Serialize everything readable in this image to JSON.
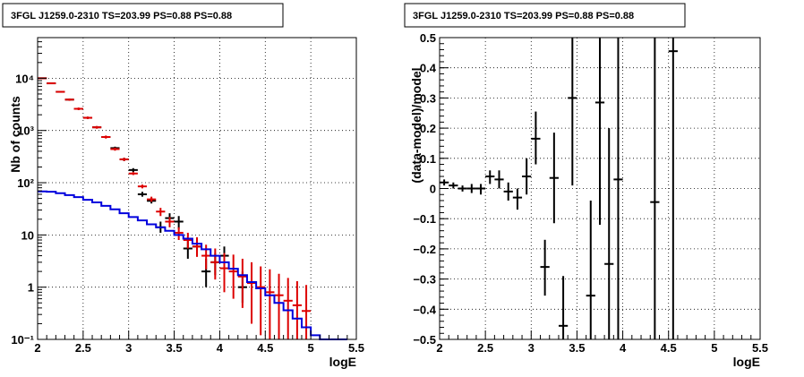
{
  "chart_data": [
    {
      "type": "scatter",
      "title": "3FGL J1259.0-2310 TS=203.99 PS=0.88 PS=0.88",
      "xlabel": "logE",
      "ylabel": "Nb of counts",
      "xlim": [
        2,
        5.5
      ],
      "ylim": [
        0.1,
        60000
      ],
      "yscale": "log",
      "grid": true,
      "x_ticks": [
        "2",
        "2.5",
        "3",
        "3.5",
        "4",
        "4.5",
        "5",
        "5.5"
      ],
      "y_ticks": [
        {
          "value": 0.1,
          "label": "10⁻¹"
        },
        {
          "value": 1,
          "label": "1"
        },
        {
          "value": 10,
          "label": "10"
        },
        {
          "value": 100,
          "label": "10²"
        },
        {
          "value": 1000,
          "label": "10³"
        },
        {
          "value": 10000,
          "label": "10⁴"
        }
      ],
      "series": [
        {
          "color": "#000000",
          "style": "errorbar",
          "points": [
            {
              "x": 2.05,
              "y": 10000,
              "ylo": 10000,
              "yhi": 10000
            },
            {
              "x": 2.15,
              "y": 8000,
              "ylo": 8000,
              "yhi": 8000
            },
            {
              "x": 2.25,
              "y": 5500,
              "ylo": 5500,
              "yhi": 5500
            },
            {
              "x": 2.35,
              "y": 3900,
              "ylo": 3900,
              "yhi": 3900
            },
            {
              "x": 2.45,
              "y": 2600,
              "ylo": 2600,
              "yhi": 2600
            },
            {
              "x": 2.55,
              "y": 1750,
              "ylo": 1750,
              "yhi": 1750
            },
            {
              "x": 2.65,
              "y": 1150,
              "ylo": 1150,
              "yhi": 1150
            },
            {
              "x": 2.75,
              "y": 750,
              "ylo": 750,
              "yhi": 750
            },
            {
              "x": 2.85,
              "y": 460,
              "ylo": 430,
              "yhi": 490
            },
            {
              "x": 2.95,
              "y": 280,
              "ylo": 260,
              "yhi": 300
            },
            {
              "x": 3.05,
              "y": 175,
              "ylo": 160,
              "yhi": 190
            },
            {
              "x": 3.15,
              "y": 60,
              "ylo": 54,
              "yhi": 67
            },
            {
              "x": 3.25,
              "y": 45,
              "ylo": 40,
              "yhi": 51
            },
            {
              "x": 3.35,
              "y": 14,
              "ylo": 11,
              "yhi": 18
            },
            {
              "x": 3.45,
              "y": 21,
              "ylo": 17,
              "yhi": 26
            },
            {
              "x": 3.55,
              "y": 18,
              "ylo": 13,
              "yhi": 23
            },
            {
              "x": 3.65,
              "y": 5.5,
              "ylo": 3.5,
              "yhi": 8
            },
            {
              "x": 3.75,
              "y": 6,
              "ylo": 4,
              "yhi": 9
            },
            {
              "x": 3.85,
              "y": 2,
              "ylo": 1,
              "yhi": 3.5
            },
            {
              "x": 3.95,
              "y": 3,
              "ylo": 1.7,
              "yhi": 4.5
            },
            {
              "x": 4.05,
              "y": 4,
              "ylo": 2.5,
              "yhi": 6
            },
            {
              "x": 4.25,
              "y": 1,
              "ylo": 0.5,
              "yhi": 2
            }
          ]
        },
        {
          "color": "#dd0000",
          "style": "errorbar",
          "points": [
            {
              "x": 2.05,
              "y": 10000,
              "ylo": 9800,
              "yhi": 10200
            },
            {
              "x": 2.15,
              "y": 8000,
              "ylo": 7800,
              "yhi": 8200
            },
            {
              "x": 2.25,
              "y": 5500,
              "ylo": 5300,
              "yhi": 5700
            },
            {
              "x": 2.35,
              "y": 3900,
              "ylo": 3700,
              "yhi": 4100
            },
            {
              "x": 2.45,
              "y": 2600,
              "ylo": 2450,
              "yhi": 2750
            },
            {
              "x": 2.55,
              "y": 1750,
              "ylo": 1650,
              "yhi": 1850
            },
            {
              "x": 2.65,
              "y": 1150,
              "ylo": 1080,
              "yhi": 1220
            },
            {
              "x": 2.75,
              "y": 750,
              "ylo": 700,
              "yhi": 800
            },
            {
              "x": 2.85,
              "y": 440,
              "ylo": 410,
              "yhi": 470
            },
            {
              "x": 2.95,
              "y": 280,
              "ylo": 260,
              "yhi": 300
            },
            {
              "x": 3.05,
              "y": 150,
              "ylo": 140,
              "yhi": 160
            },
            {
              "x": 3.15,
              "y": 85,
              "ylo": 78,
              "yhi": 92
            },
            {
              "x": 3.25,
              "y": 48,
              "ylo": 43,
              "yhi": 54
            },
            {
              "x": 3.35,
              "y": 28,
              "ylo": 23,
              "yhi": 33
            },
            {
              "x": 3.45,
              "y": 18,
              "ylo": 14,
              "yhi": 22
            },
            {
              "x": 3.55,
              "y": 11,
              "ylo": 8,
              "yhi": 14
            },
            {
              "x": 3.65,
              "y": 8,
              "ylo": 5.5,
              "yhi": 11
            },
            {
              "x": 3.75,
              "y": 6,
              "ylo": 3.8,
              "yhi": 9
            },
            {
              "x": 3.85,
              "y": 4,
              "ylo": 2.2,
              "yhi": 6.5
            },
            {
              "x": 3.95,
              "y": 3,
              "ylo": 1.4,
              "yhi": 5.5
            },
            {
              "x": 4.05,
              "y": 2.3,
              "ylo": 0.8,
              "yhi": 4.5
            },
            {
              "x": 4.15,
              "y": 2.0,
              "ylo": 0.6,
              "yhi": 4.2
            },
            {
              "x": 4.25,
              "y": 1.6,
              "ylo": 0.4,
              "yhi": 3.5
            },
            {
              "x": 4.35,
              "y": 1.2,
              "ylo": 0.2,
              "yhi": 3.0
            },
            {
              "x": 4.45,
              "y": 1.0,
              "ylo": 0.12,
              "yhi": 2.5
            },
            {
              "x": 4.55,
              "y": 0.8,
              "ylo": 0.1,
              "yhi": 2.2
            },
            {
              "x": 4.65,
              "y": 0.7,
              "ylo": 0.1,
              "yhi": 1.8
            },
            {
              "x": 4.75,
              "y": 0.55,
              "ylo": 0.1,
              "yhi": 1.5
            },
            {
              "x": 4.85,
              "y": 0.45,
              "ylo": 0.1,
              "yhi": 1.3
            },
            {
              "x": 4.95,
              "y": 0.35,
              "ylo": 0.1,
              "yhi": 1.1
            }
          ]
        },
        {
          "color": "#0000dd",
          "style": "step",
          "points": [
            {
              "x": 2.0,
              "y": 68
            },
            {
              "x": 2.1,
              "y": 67
            },
            {
              "x": 2.2,
              "y": 63
            },
            {
              "x": 2.3,
              "y": 58
            },
            {
              "x": 2.4,
              "y": 53
            },
            {
              "x": 2.5,
              "y": 47
            },
            {
              "x": 2.6,
              "y": 42
            },
            {
              "x": 2.7,
              "y": 36
            },
            {
              "x": 2.8,
              "y": 31
            },
            {
              "x": 2.9,
              "y": 26
            },
            {
              "x": 3.0,
              "y": 22
            },
            {
              "x": 3.1,
              "y": 19
            },
            {
              "x": 3.2,
              "y": 16
            },
            {
              "x": 3.3,
              "y": 14
            },
            {
              "x": 3.4,
              "y": 12
            },
            {
              "x": 3.5,
              "y": 10
            },
            {
              "x": 3.6,
              "y": 8.5
            },
            {
              "x": 3.7,
              "y": 6.8
            },
            {
              "x": 3.8,
              "y": 5.3
            },
            {
              "x": 3.9,
              "y": 4.0
            },
            {
              "x": 4.0,
              "y": 3.0
            },
            {
              "x": 4.1,
              "y": 2.25
            },
            {
              "x": 4.2,
              "y": 1.7
            },
            {
              "x": 4.3,
              "y": 1.25
            },
            {
              "x": 4.4,
              "y": 0.95
            },
            {
              "x": 4.5,
              "y": 0.7
            },
            {
              "x": 4.6,
              "y": 0.5
            },
            {
              "x": 4.7,
              "y": 0.36
            },
            {
              "x": 4.8,
              "y": 0.25
            },
            {
              "x": 4.9,
              "y": 0.17
            },
            {
              "x": 5.0,
              "y": 0.12
            },
            {
              "x": 5.1,
              "y": 0.1
            },
            {
              "x": 5.2,
              "y": 0.1
            },
            {
              "x": 5.3,
              "y": 0.1
            }
          ]
        }
      ]
    },
    {
      "type": "scatter",
      "title": "3FGL J1259.0-2310 TS=203.99 PS=0.88 PS=0.88",
      "xlabel": "logE",
      "ylabel": "(data-model)/model",
      "xlim": [
        2,
        5.5
      ],
      "ylim": [
        -0.5,
        0.5
      ],
      "yscale": "linear",
      "grid": true,
      "x_ticks": [
        "2",
        "2.5",
        "3",
        "3.5",
        "4",
        "4.5",
        "5",
        "5.5"
      ],
      "y_ticks": [
        {
          "value": -0.5,
          "label": "−0.5"
        },
        {
          "value": -0.4,
          "label": "−0.4"
        },
        {
          "value": -0.3,
          "label": "−0.3"
        },
        {
          "value": -0.2,
          "label": "−0.2"
        },
        {
          "value": -0.1,
          "label": "−0.1"
        },
        {
          "value": 0,
          "label": "0"
        },
        {
          "value": 0.1,
          "label": "0.1"
        },
        {
          "value": 0.2,
          "label": "0.2"
        },
        {
          "value": 0.3,
          "label": "0.3"
        },
        {
          "value": 0.4,
          "label": "0.4"
        },
        {
          "value": 0.5,
          "label": "0.5"
        }
      ],
      "series": [
        {
          "color": "#000000",
          "style": "errorbar",
          "points": [
            {
              "x": 2.05,
              "y": 0.02,
              "ylo": 0.01,
              "yhi": 0.03
            },
            {
              "x": 2.15,
              "y": 0.01,
              "ylo": 0.0,
              "yhi": 0.02
            },
            {
              "x": 2.25,
              "y": 0.0,
              "ylo": -0.01,
              "yhi": 0.01
            },
            {
              "x": 2.35,
              "y": 0.0,
              "ylo": -0.015,
              "yhi": 0.015
            },
            {
              "x": 2.45,
              "y": 0.0,
              "ylo": -0.02,
              "yhi": 0.015
            },
            {
              "x": 2.55,
              "y": 0.04,
              "ylo": 0.015,
              "yhi": 0.06
            },
            {
              "x": 2.65,
              "y": 0.03,
              "ylo": 0.0,
              "yhi": 0.06
            },
            {
              "x": 2.75,
              "y": -0.01,
              "ylo": -0.04,
              "yhi": 0.02
            },
            {
              "x": 2.85,
              "y": -0.03,
              "ylo": -0.07,
              "yhi": 0.0
            },
            {
              "x": 2.95,
              "y": 0.04,
              "ylo": -0.02,
              "yhi": 0.1
            },
            {
              "x": 3.05,
              "y": 0.165,
              "ylo": 0.08,
              "yhi": 0.255
            },
            {
              "x": 3.15,
              "y": -0.26,
              "ylo": -0.355,
              "yhi": -0.17
            },
            {
              "x": 3.25,
              "y": 0.035,
              "ylo": -0.115,
              "yhi": 0.185
            },
            {
              "x": 3.35,
              "y": -0.455,
              "ylo": -0.5,
              "yhi": -0.29
            },
            {
              "x": 3.45,
              "y": 0.3,
              "ylo": 0.01,
              "yhi": 0.5
            },
            {
              "x": 3.65,
              "y": -0.355,
              "ylo": -0.5,
              "yhi": -0.04
            },
            {
              "x": 3.75,
              "y": 0.285,
              "ylo": -0.12,
              "yhi": 0.5
            },
            {
              "x": 3.85,
              "y": -0.25,
              "ylo": -0.5,
              "yhi": 0.2
            },
            {
              "x": 3.95,
              "y": 0.03,
              "ylo": -0.5,
              "yhi": 0.5
            },
            {
              "x": 4.35,
              "y": -0.045,
              "ylo": -0.5,
              "yhi": 0.5
            },
            {
              "x": 4.55,
              "y": 0.455,
              "ylo": -0.5,
              "yhi": 0.5
            }
          ]
        }
      ]
    }
  ]
}
